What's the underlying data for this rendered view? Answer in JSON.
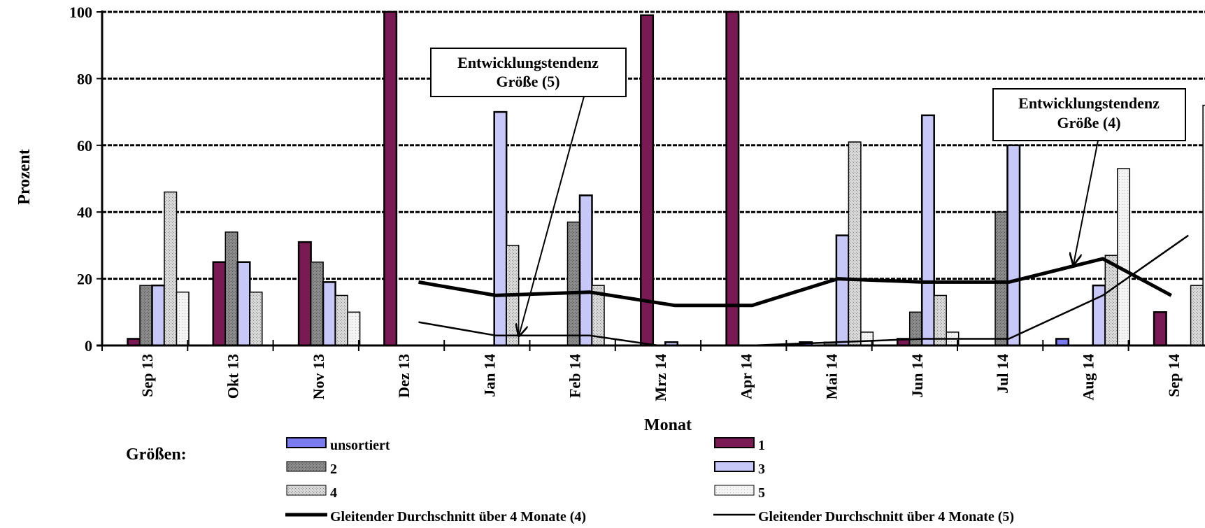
{
  "chart_data": {
    "type": "bar",
    "xlabel": "Monat",
    "ylabel": "Prozent",
    "ylim": [
      0,
      100
    ],
    "yticks": [
      "0",
      "20",
      "40",
      "60",
      "80",
      "100"
    ],
    "grid": true,
    "categories": [
      "Sep 13",
      "Okt 13",
      "Nov 13",
      "Dez 13",
      "Jan 14",
      "Feb 14",
      "Mrz 14",
      "Apr 14",
      "Mai 14",
      "Jun 14",
      "Jul 14",
      "Aug 14",
      "Sep 14"
    ],
    "series": [
      {
        "name": "unsortiert",
        "color": "#7b7bf0",
        "values": [
          0,
          0,
          0,
          0,
          0,
          0,
          0,
          0,
          1,
          0,
          0,
          2,
          0
        ]
      },
      {
        "name": "1",
        "color": "#7a1a55",
        "values": [
          2,
          25,
          31,
          100,
          0,
          0,
          99,
          100,
          0,
          2,
          0,
          0,
          10
        ]
      },
      {
        "name": "2",
        "color": "#8a8a8a",
        "values": [
          18,
          34,
          25,
          0,
          0,
          37,
          0,
          0,
          1,
          10,
          40,
          0,
          0
        ]
      },
      {
        "name": "3",
        "color": "#c8c8f8",
        "values": [
          18,
          25,
          19,
          0,
          70,
          45,
          1,
          0,
          33,
          69,
          60,
          18,
          0
        ]
      },
      {
        "name": "4",
        "color": "#cfcfcf",
        "values": [
          46,
          16,
          15,
          0,
          30,
          18,
          0,
          0,
          61,
          15,
          0,
          27,
          18
        ]
      },
      {
        "name": "5",
        "color": "#efefef",
        "values": [
          16,
          0,
          10,
          0,
          0,
          0,
          0,
          0,
          4,
          4,
          0,
          53,
          72
        ]
      }
    ],
    "lines": [
      {
        "name": "Gleitender Durchschnitt über 4 Monate (4)",
        "width": 5,
        "points": [
          [
            3.7,
            19
          ],
          [
            4.6,
            15
          ],
          [
            5.7,
            16
          ],
          [
            6.7,
            12
          ],
          [
            7.6,
            12
          ],
          [
            8.6,
            20
          ],
          [
            9.6,
            19
          ],
          [
            10.6,
            19
          ],
          [
            11.7,
            26
          ],
          [
            12.5,
            15
          ]
        ]
      },
      {
        "name": "Gleitender Durchschnitt über 4 Monate (5)",
        "width": 2.5,
        "points": [
          [
            3.7,
            7
          ],
          [
            4.6,
            3
          ],
          [
            5.7,
            3
          ],
          [
            6.5,
            0
          ],
          [
            7.6,
            0
          ],
          [
            8.6,
            1
          ],
          [
            9.6,
            2
          ],
          [
            10.6,
            2
          ],
          [
            11.7,
            15
          ],
          [
            12.7,
            33
          ]
        ]
      }
    ],
    "annotations": [
      {
        "line1": "Entwicklungstendenz",
        "line2": "Größe  (5)"
      },
      {
        "line1": "Entwicklungstendenz",
        "line2": "Größe  (4)"
      }
    ],
    "legend_title": "Größen:",
    "legend_items": [
      "unsortiert",
      "1",
      "2",
      "3",
      "4",
      "5",
      "Gleitender Durchschnitt über 4 Monate (4)",
      "Gleitender Durchschnitt über 4 Monate (5)"
    ]
  }
}
